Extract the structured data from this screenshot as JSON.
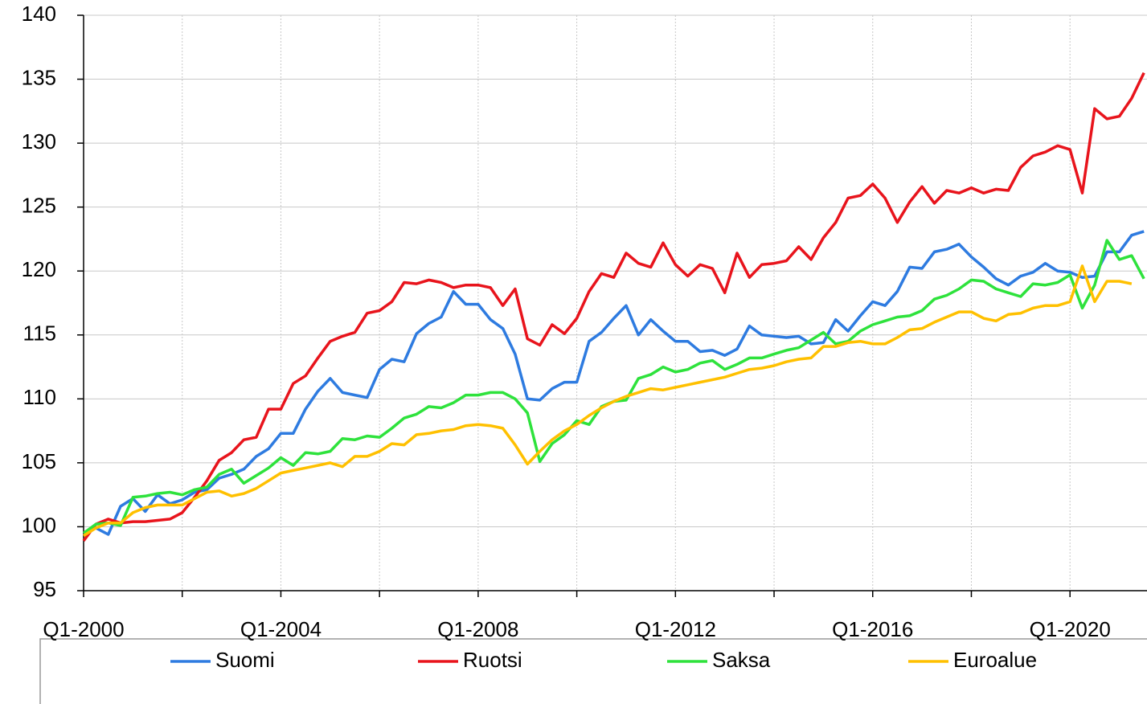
{
  "chart_data": {
    "type": "line",
    "categories": [
      "Q1-2000",
      null,
      null,
      null,
      null,
      null,
      null,
      null,
      null,
      null,
      null,
      null,
      null,
      null,
      null,
      null,
      "Q1-2004",
      null,
      null,
      null,
      null,
      null,
      null,
      null,
      null,
      null,
      null,
      null,
      null,
      null,
      null,
      null,
      "Q1-2008",
      null,
      null,
      null,
      null,
      null,
      null,
      null,
      null,
      null,
      null,
      null,
      null,
      null,
      null,
      null,
      "Q1-2012",
      null,
      null,
      null,
      null,
      null,
      null,
      null,
      null,
      null,
      null,
      null,
      null,
      null,
      null,
      null,
      "Q1-2016",
      null,
      null,
      null,
      null,
      null,
      null,
      null,
      null,
      null,
      null,
      null,
      null,
      null,
      null,
      null,
      "Q1-2020",
      null,
      null,
      null,
      null,
      null,
      null
    ],
    "series": [
      {
        "name": "Suomi",
        "color": "#2e7be0",
        "values": [
          99.5,
          99.9,
          99.4,
          101.6,
          102.2,
          101.2,
          102.5,
          101.8,
          102.1,
          102.7,
          102.9,
          103.8,
          104.1,
          104.5,
          105.5,
          106.1,
          107.3,
          107.3,
          109.2,
          110.6,
          111.6,
          110.5,
          110.3,
          110.1,
          112.3,
          113.1,
          112.9,
          115.1,
          115.9,
          116.4,
          118.4,
          117.4,
          117.4,
          116.2,
          115.5,
          113.5,
          110.0,
          109.9,
          110.8,
          111.3,
          111.3,
          114.5,
          115.2,
          116.3,
          117.3,
          115.0,
          116.2,
          115.3,
          114.5,
          114.5,
          113.7,
          113.8,
          113.4,
          113.9,
          115.7,
          115.0,
          114.9,
          114.8,
          114.9,
          114.3,
          114.4,
          116.2,
          115.3,
          116.5,
          117.6,
          117.3,
          118.4,
          120.3,
          120.2,
          121.5,
          121.7,
          122.1,
          121.1,
          120.3,
          119.4,
          118.9,
          119.6,
          119.9,
          120.6,
          120.0,
          119.9,
          119.5,
          119.6,
          121.5,
          121.5,
          122.8,
          123.1
        ]
      },
      {
        "name": "Ruotsi",
        "color": "#e8141c",
        "values": [
          98.9,
          100.2,
          100.6,
          100.3,
          100.4,
          100.4,
          100.5,
          100.6,
          101.1,
          102.3,
          103.6,
          105.2,
          105.8,
          106.8,
          107.0,
          109.2,
          109.2,
          111.2,
          111.8,
          113.2,
          114.5,
          114.9,
          115.2,
          116.7,
          116.9,
          117.6,
          119.1,
          119.0,
          119.3,
          119.1,
          118.7,
          118.9,
          118.9,
          118.7,
          117.3,
          118.6,
          114.7,
          114.2,
          115.8,
          115.1,
          116.3,
          118.4,
          119.8,
          119.5,
          121.4,
          120.6,
          120.3,
          122.2,
          120.5,
          119.6,
          120.5,
          120.2,
          118.3,
          121.4,
          119.5,
          120.5,
          120.6,
          120.8,
          121.9,
          120.9,
          122.6,
          123.8,
          125.7,
          125.9,
          126.8,
          125.7,
          123.8,
          125.4,
          126.6,
          125.3,
          126.3,
          126.1,
          126.5,
          126.1,
          126.4,
          126.3,
          128.1,
          129.0,
          129.3,
          129.8,
          129.5,
          126.1,
          132.7,
          131.9,
          132.1,
          133.5,
          135.5
        ]
      },
      {
        "name": "Saksa",
        "color": "#2ee23c",
        "values": [
          99.5,
          100.2,
          100.3,
          100.1,
          102.3,
          102.4,
          102.6,
          102.7,
          102.5,
          102.9,
          103.1,
          104.1,
          104.5,
          103.4,
          104.0,
          104.6,
          105.4,
          104.8,
          105.8,
          105.7,
          105.9,
          106.9,
          106.8,
          107.1,
          107.0,
          107.7,
          108.5,
          108.8,
          109.4,
          109.3,
          109.7,
          110.3,
          110.3,
          110.5,
          110.5,
          110.0,
          108.9,
          105.1,
          106.5,
          107.2,
          108.3,
          108.0,
          109.4,
          109.8,
          109.9,
          111.6,
          111.9,
          112.5,
          112.1,
          112.3,
          112.8,
          113.0,
          112.3,
          112.7,
          113.2,
          113.2,
          113.5,
          113.8,
          114.0,
          114.6,
          115.2,
          114.3,
          114.5,
          115.3,
          115.8,
          116.1,
          116.4,
          116.5,
          116.9,
          117.8,
          118.1,
          118.6,
          119.3,
          119.2,
          118.6,
          118.3,
          118.0,
          119.0,
          118.9,
          119.1,
          119.7,
          117.1,
          118.9,
          122.4,
          120.9,
          121.2,
          119.4
        ]
      },
      {
        "name": "Euroalue",
        "color": "#ffc000",
        "values": [
          99.3,
          99.9,
          100.3,
          100.3,
          101.1,
          101.5,
          101.7,
          101.7,
          101.7,
          102.2,
          102.7,
          102.8,
          102.4,
          102.6,
          103.0,
          103.6,
          104.2,
          104.4,
          104.6,
          104.8,
          105.0,
          104.7,
          105.5,
          105.5,
          105.9,
          106.5,
          106.4,
          107.2,
          107.3,
          107.5,
          107.6,
          107.9,
          108.0,
          107.9,
          107.7,
          106.4,
          104.9,
          105.9,
          106.8,
          107.5,
          108.0,
          108.7,
          109.3,
          109.8,
          110.2,
          110.5,
          110.8,
          110.7,
          110.9,
          111.1,
          111.3,
          111.5,
          111.7,
          112.0,
          112.3,
          112.4,
          112.6,
          112.9,
          113.1,
          113.2,
          114.1,
          114.1,
          114.4,
          114.5,
          114.3,
          114.3,
          114.8,
          115.4,
          115.5,
          116.0,
          116.4,
          116.8,
          116.8,
          116.3,
          116.1,
          116.6,
          116.7,
          117.1,
          117.3,
          117.3,
          117.6,
          120.4,
          117.6,
          119.2,
          119.2,
          119.0,
          null
        ]
      }
    ],
    "ylim": [
      95,
      140
    ],
    "yticks": [
      95,
      100,
      105,
      110,
      115,
      120,
      125,
      130,
      135,
      140
    ],
    "grid": true
  }
}
